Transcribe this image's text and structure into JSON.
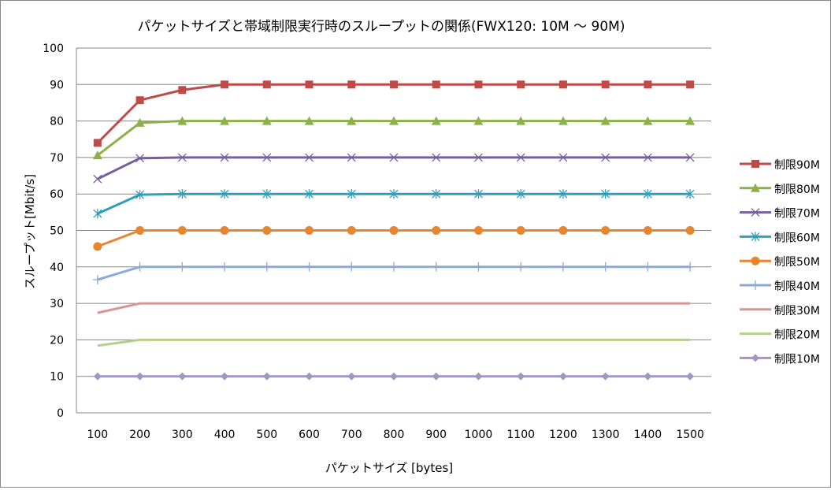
{
  "chart_data": {
    "type": "line",
    "title": "パケットサイズと帯域制限実行時のスループットの関係(FWX120: 10M ～ 90M)",
    "xlabel": "パケットサイズ [bytes]",
    "ylabel": "スループット[Mbit/s]",
    "categories": [
      "100",
      "200",
      "300",
      "400",
      "500",
      "600",
      "700",
      "800",
      "900",
      "1000",
      "1100",
      "1200",
      "1300",
      "1400",
      "1500"
    ],
    "ylim": [
      0,
      100
    ],
    "yticks": [
      "0",
      "10",
      "20",
      "30",
      "40",
      "50",
      "60",
      "70",
      "80",
      "90",
      "100"
    ],
    "grid": true,
    "legend": "right",
    "series": [
      {
        "name": "制限90M",
        "color": "#be4b48",
        "marker": "square",
        "values": [
          74,
          85.7,
          88.5,
          90,
          90,
          90,
          90,
          90,
          90,
          90,
          90,
          90,
          90,
          90,
          90
        ]
      },
      {
        "name": "制限80M",
        "color": "#8eb04a",
        "marker": "triangle",
        "values": [
          70.6,
          79.5,
          80,
          80,
          80,
          80,
          80,
          80,
          80,
          80,
          80,
          80,
          80,
          80,
          80
        ]
      },
      {
        "name": "制限70M",
        "color": "#7460a0",
        "marker": "x",
        "values": [
          64.1,
          69.8,
          70,
          70,
          70,
          70,
          70,
          70,
          70,
          70,
          70,
          70,
          70,
          70,
          70
        ]
      },
      {
        "name": "制限60M",
        "color": "#2f9fbb",
        "marker": "asterisk",
        "values": [
          54.6,
          59.8,
          60,
          60,
          60,
          60,
          60,
          60,
          60,
          60,
          60,
          60,
          60,
          60,
          60
        ]
      },
      {
        "name": "制限50M",
        "color": "#e8852f",
        "marker": "circle",
        "values": [
          45.6,
          50,
          50,
          50,
          50,
          50,
          50,
          50,
          50,
          50,
          50,
          50,
          50,
          50,
          50
        ]
      },
      {
        "name": "制限40M",
        "color": "#8ea9d6",
        "marker": "plus",
        "values": [
          36.5,
          40,
          40,
          40,
          40,
          40,
          40,
          40,
          40,
          40,
          40,
          40,
          40,
          40,
          40
        ]
      },
      {
        "name": "制限30M",
        "color": "#d99594",
        "marker": "none",
        "values": [
          27.4,
          30,
          30,
          30,
          30,
          30,
          30,
          30,
          30,
          30,
          30,
          30,
          30,
          30,
          30
        ]
      },
      {
        "name": "制限20M",
        "color": "#b3cf8a",
        "marker": "none",
        "values": [
          18.4,
          20,
          20,
          20,
          20,
          20,
          20,
          20,
          20,
          20,
          20,
          20,
          20,
          20,
          20
        ]
      },
      {
        "name": "制限10M",
        "color": "#a396c4",
        "marker": "diamond",
        "values": [
          10,
          10,
          10,
          10,
          10,
          10,
          10,
          10,
          10,
          10,
          10,
          10,
          10,
          10,
          10
        ]
      }
    ]
  }
}
